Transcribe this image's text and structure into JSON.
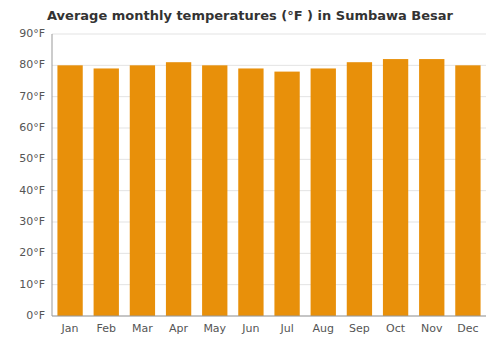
{
  "chart_data": {
    "type": "bar",
    "title": "Average monthly temperatures (°F ) in Sumbawa Besar",
    "categories": [
      "Jan",
      "Feb",
      "Mar",
      "Apr",
      "May",
      "Jun",
      "Jul",
      "Aug",
      "Sep",
      "Oct",
      "Nov",
      "Dec"
    ],
    "values": [
      80,
      79,
      80,
      81,
      80,
      79,
      78,
      79,
      81,
      82,
      82,
      80
    ],
    "color": "#E8900A",
    "ylim": [
      0,
      90
    ],
    "yticks": [
      {
        "value": 0,
        "label": "0°F"
      },
      {
        "value": 10,
        "label": "10°F"
      },
      {
        "value": 20,
        "label": "20°F"
      },
      {
        "value": 30,
        "label": "30°F"
      },
      {
        "value": 40,
        "label": "40°F"
      },
      {
        "value": 50,
        "label": "50°F"
      },
      {
        "value": 60,
        "label": "60°F"
      },
      {
        "value": 70,
        "label": "70°F"
      },
      {
        "value": 80,
        "label": "80°F"
      },
      {
        "value": 90,
        "label": "90°F"
      }
    ],
    "grid": true
  }
}
